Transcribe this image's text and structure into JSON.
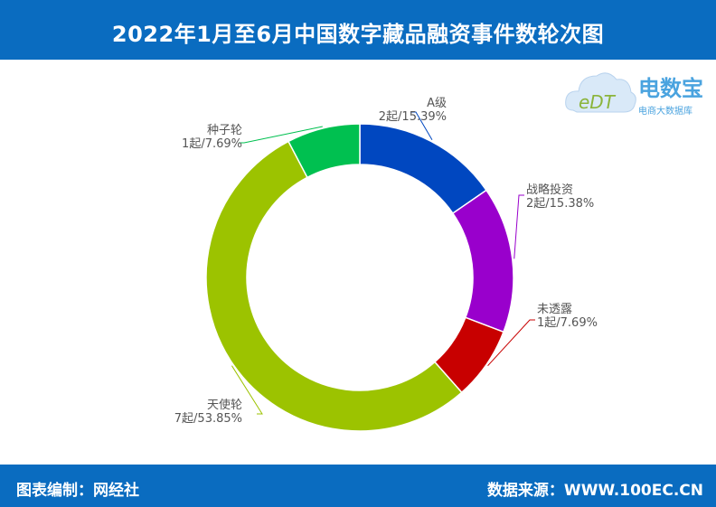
{
  "header": {
    "title": "2022年1月至6月中国数字藏品融资事件数轮次图"
  },
  "footer": {
    "left": "图表编制：网经社",
    "right": "数据来源：WWW.100EC.CN"
  },
  "logo": {
    "brand": "电数宝",
    "tagline": "电商大数据库",
    "mark": "eDT"
  },
  "colors": {
    "band": "#0a6cc0",
    "text_label": "#555555"
  },
  "chart_data": {
    "type": "pie",
    "title": "2022年1月至6月中国数字藏品融资事件数轮次图",
    "slices": [
      {
        "label": "A级",
        "value_text": "2起/15.39%",
        "count": 2,
        "percent": 15.39,
        "color": "#0047c0"
      },
      {
        "label": "战略投资",
        "value_text": "2起/15.38%",
        "count": 2,
        "percent": 15.38,
        "color": "#9900cc"
      },
      {
        "label": "未透露",
        "value_text": "1起/7.69%",
        "count": 1,
        "percent": 7.69,
        "color": "#c80000"
      },
      {
        "label": "天使轮",
        "value_text": "7起/53.85%",
        "count": 7,
        "percent": 53.85,
        "color": "#9cc300"
      },
      {
        "label": "种子轮",
        "value_text": "1起/7.69%",
        "count": 1,
        "percent": 7.69,
        "color": "#00c050"
      }
    ],
    "donut": true,
    "legend": "none"
  }
}
